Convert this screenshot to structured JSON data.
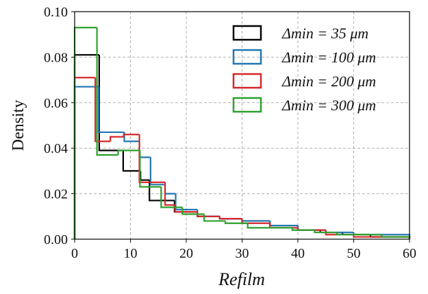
{
  "chart_data": {
    "type": "histogram",
    "x_label": "Refilm",
    "y_label": "Density",
    "xlim": [
      0,
      60
    ],
    "ylim": [
      0,
      0.1
    ],
    "xticks": [
      0,
      10,
      20,
      30,
      40,
      50,
      60
    ],
    "yticks": [
      {
        "value": 0,
        "label": "0.00"
      },
      {
        "value": 0.02,
        "label": "0.02"
      },
      {
        "value": 0.04,
        "label": "0.04"
      },
      {
        "value": 0.06,
        "label": "0.06"
      },
      {
        "value": 0.08,
        "label": "0.08"
      },
      {
        "value": 0.1,
        "label": "0.10"
      }
    ],
    "grid": true,
    "legend": "upper right",
    "series": [
      {
        "name": "Δmin = 35 μm",
        "color": "#000000",
        "bins": [
          0,
          4.4,
          8.7,
          11.8,
          13.4,
          17.9,
          22,
          26,
          30,
          35,
          40,
          44,
          48,
          53,
          60
        ],
        "values": [
          0.081,
          0.039,
          0.03,
          0.026,
          0.017,
          0.012,
          0.01,
          0.009,
          0.008,
          0.006,
          0.004,
          0.003,
          0.002,
          0.001
        ]
      },
      {
        "name": "Δmin = 100 μm",
        "color": "#1f77b4",
        "bins": [
          0,
          4.3,
          8.9,
          11.6,
          13.6,
          16.2,
          18.1,
          22,
          26,
          30,
          35,
          40,
          45,
          50,
          60
        ],
        "values": [
          0.067,
          0.047,
          0.043,
          0.036,
          0.024,
          0.02,
          0.013,
          0.01,
          0.009,
          0.008,
          0.006,
          0.004,
          0.003,
          0.002
        ]
      },
      {
        "name": "Δmin = 200 μm",
        "color": "#d62728",
        "bins": [
          0,
          3.7,
          6.4,
          8.8,
          11.6,
          13.4,
          16.2,
          18,
          22,
          26,
          30,
          35,
          40,
          45,
          50,
          60
        ],
        "values": [
          0.071,
          0.043,
          0.045,
          0.046,
          0.025,
          0.025,
          0.015,
          0.012,
          0.01,
          0.009,
          0.007,
          0.005,
          0.004,
          0.002,
          0.001
        ]
      },
      {
        "name": "Δmin = 300 μm",
        "color": "#2ca02c",
        "bins": [
          0,
          4.0,
          7.8,
          11.7,
          15.5,
          19.3,
          23.2,
          27,
          31,
          35,
          39,
          43,
          47,
          51,
          55,
          60
        ],
        "values": [
          0.093,
          0.037,
          0.039,
          0.023,
          0.014,
          0.011,
          0.008,
          0.007,
          0.005,
          0.005,
          0.004,
          0.003,
          0.002,
          0.002,
          0.001
        ]
      }
    ]
  }
}
